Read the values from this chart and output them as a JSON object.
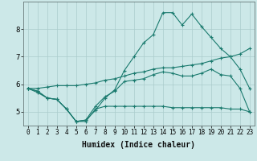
{
  "background_color": "#cce8e8",
  "line_color": "#1a7a6e",
  "grid_color": "#aacccc",
  "xlabel": "Humidex (Indice chaleur)",
  "ylim": [
    4.5,
    9.0
  ],
  "xlim": [
    -0.5,
    23.5
  ],
  "yticks": [
    5,
    6,
    7,
    8
  ],
  "xticks": [
    0,
    1,
    2,
    3,
    4,
    5,
    6,
    7,
    8,
    9,
    10,
    11,
    12,
    13,
    14,
    15,
    16,
    17,
    18,
    19,
    20,
    21,
    22,
    23
  ],
  "series": [
    {
      "x": [
        0,
        1,
        2,
        3,
        4,
        5,
        6,
        7,
        8,
        9,
        10,
        11,
        12,
        13,
        14,
        15,
        16,
        17,
        18,
        19,
        20,
        21,
        22,
        23
      ],
      "y": [
        5.85,
        5.75,
        5.5,
        5.45,
        5.1,
        4.65,
        4.65,
        5.1,
        5.2,
        5.2,
        5.2,
        5.2,
        5.2,
        5.2,
        5.2,
        5.15,
        5.15,
        5.15,
        5.15,
        5.15,
        5.15,
        5.1,
        5.1,
        5.0
      ]
    },
    {
      "x": [
        0,
        1,
        2,
        3,
        4,
        5,
        6,
        7,
        8,
        9,
        10,
        11,
        12,
        13,
        14,
        15,
        16,
        17,
        18,
        19,
        20,
        21,
        22,
        23
      ],
      "y": [
        5.85,
        5.7,
        5.5,
        5.45,
        5.1,
        4.65,
        4.7,
        5.2,
        5.55,
        5.75,
        6.1,
        6.15,
        6.2,
        6.35,
        6.45,
        6.4,
        6.3,
        6.3,
        6.4,
        6.55,
        6.35,
        6.3,
        5.85,
        5.0
      ]
    },
    {
      "x": [
        0,
        1,
        2,
        3,
        4,
        5,
        6,
        7,
        8,
        9,
        10,
        11,
        12,
        13,
        14,
        15,
        16,
        17,
        18,
        19,
        20,
        21,
        22,
        23
      ],
      "y": [
        5.85,
        5.85,
        5.9,
        5.95,
        5.95,
        5.95,
        6.0,
        6.05,
        6.15,
        6.2,
        6.3,
        6.4,
        6.45,
        6.55,
        6.6,
        6.6,
        6.65,
        6.7,
        6.75,
        6.85,
        6.95,
        7.0,
        7.1,
        7.3
      ]
    },
    {
      "x": [
        0,
        1,
        2,
        3,
        4,
        5,
        6,
        7,
        8,
        9,
        10,
        11,
        12,
        13,
        14,
        15,
        16,
        17,
        18,
        19,
        20,
        21,
        22,
        23
      ],
      "y": [
        5.85,
        5.75,
        5.5,
        5.45,
        5.1,
        4.65,
        4.7,
        5.05,
        5.5,
        5.8,
        6.5,
        7.0,
        7.5,
        7.8,
        8.6,
        8.6,
        8.15,
        8.55,
        8.1,
        7.7,
        7.3,
        7.0,
        6.55,
        5.85
      ]
    }
  ]
}
